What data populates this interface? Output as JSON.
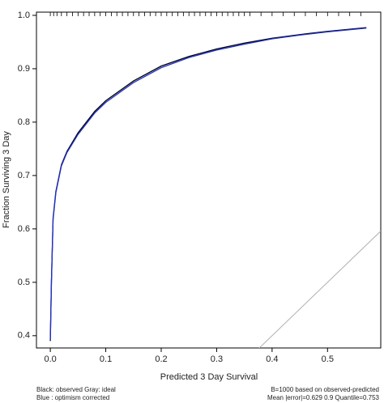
{
  "chart_data": {
    "type": "line",
    "xlabel": "Predicted  3 Day Survival",
    "ylabel": "Fraction Surviving 3 Day",
    "notes": [
      "Black: observed  Gray: ideal",
      "Blue : optimism corrected",
      "B=1000 based on observed-predicted",
      "Mean |error|=0.629  0.9 Quantile=0.753"
    ],
    "xlim": [
      -0.025,
      0.596
    ],
    "ylim": [
      0.377,
      1.006
    ],
    "xticks": [
      {
        "value": 0,
        "label": "0.0"
      },
      0.1,
      0.2,
      0.3,
      0.4,
      0.5
    ],
    "yticks": [
      0.4,
      0.5,
      0.6,
      0.7,
      0.8,
      0.9,
      {
        "value": 1,
        "label": "1.0"
      }
    ],
    "series": [
      {
        "color": "#b0b0b0",
        "x": [
          0.37,
          0.596
        ],
        "values": [
          0.37,
          0.596
        ]
      },
      {
        "color": "#000000",
        "x": [
          0.0,
          0.002,
          0.005,
          0.01,
          0.02,
          0.03,
          0.05,
          0.08,
          0.1,
          0.15,
          0.2,
          0.25,
          0.3,
          0.35,
          0.4,
          0.45,
          0.5,
          0.57
        ],
        "values": [
          0.39,
          0.5,
          0.62,
          0.67,
          0.72,
          0.745,
          0.78,
          0.82,
          0.84,
          0.877,
          0.905,
          0.923,
          0.937,
          0.948,
          0.957,
          0.964,
          0.97,
          0.977
        ]
      },
      {
        "color": "#1f2fd0",
        "x": [
          0.0,
          0.002,
          0.005,
          0.01,
          0.02,
          0.03,
          0.05,
          0.08,
          0.1,
          0.15,
          0.2,
          0.25,
          0.3,
          0.35,
          0.4,
          0.45,
          0.5,
          0.57
        ],
        "values": [
          0.392,
          0.502,
          0.618,
          0.668,
          0.718,
          0.743,
          0.777,
          0.817,
          0.837,
          0.874,
          0.902,
          0.921,
          0.935,
          0.946,
          0.956,
          0.963,
          0.969,
          0.976
        ]
      }
    ],
    "rug": [
      0.0,
      0.006,
      0.012,
      0.02,
      0.03,
      0.04,
      0.05,
      0.06,
      0.07,
      0.08,
      0.09,
      0.1,
      0.11,
      0.12,
      0.13,
      0.14,
      0.15,
      0.16,
      0.17,
      0.18,
      0.19,
      0.2,
      0.21,
      0.22,
      0.23,
      0.24,
      0.25,
      0.26,
      0.27,
      0.28,
      0.29,
      0.3,
      0.31,
      0.32,
      0.33,
      0.34,
      0.35,
      0.36,
      0.38,
      0.4,
      0.42,
      0.44,
      0.46,
      0.48,
      0.5,
      0.52,
      0.54,
      0.56
    ]
  }
}
